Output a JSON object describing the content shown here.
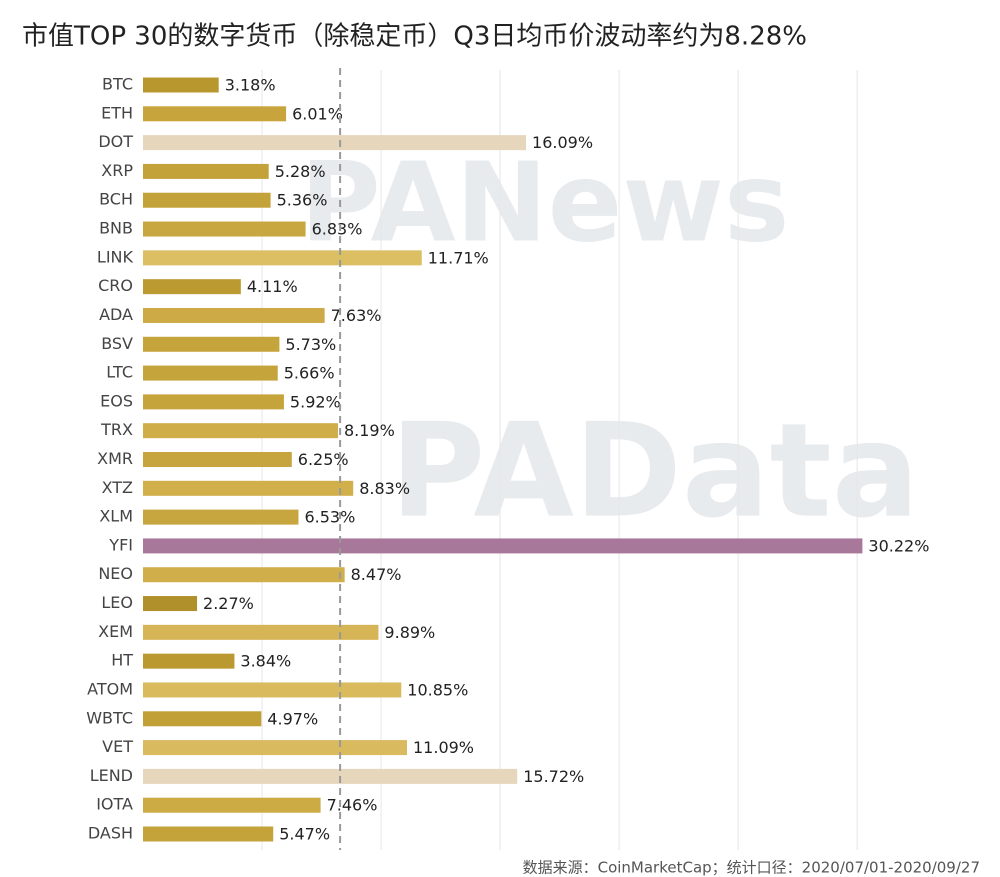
{
  "chart_data": {
    "type": "barh",
    "title": "市值TOP 30的数字货币（除稳定币）Q3日均币价波动率约为8.28%",
    "categories": [
      "BTC",
      "ETH",
      "DOT",
      "XRP",
      "BCH",
      "BNB",
      "LINK",
      "CRO",
      "ADA",
      "BSV",
      "LTC",
      "EOS",
      "TRX",
      "XMR",
      "XTZ",
      "XLM",
      "YFI",
      "NEO",
      "LEO",
      "XEM",
      "HT",
      "ATOM",
      "WBTC",
      "VET",
      "LEND",
      "IOTA",
      "DASH"
    ],
    "values": [
      3.18,
      6.01,
      16.09,
      5.28,
      5.36,
      6.83,
      11.71,
      4.11,
      7.63,
      5.73,
      5.66,
      5.92,
      8.19,
      6.25,
      8.83,
      6.53,
      30.22,
      8.47,
      2.27,
      9.89,
      3.84,
      10.85,
      4.97,
      11.09,
      15.72,
      7.46,
      5.47
    ],
    "value_labels": [
      "3.18%",
      "6.01%",
      "16.09%",
      "5.28%",
      "5.36%",
      "6.83%",
      "11.71%",
      "4.11%",
      "7.63%",
      "5.73%",
      "5.66%",
      "5.92%",
      "8.19%",
      "6.25%",
      "8.83%",
      "6.53%",
      "30.22%",
      "8.47%",
      "2.27%",
      "9.89%",
      "3.84%",
      "10.85%",
      "4.97%",
      "11.09%",
      "15.72%",
      "7.46%",
      "5.47%"
    ],
    "colors": [
      "#b8982e",
      "#c7a43c",
      "#e5d6bc",
      "#c4a23a",
      "#c4a23a",
      "#c9a740",
      "#dcbf63",
      "#bb9a32",
      "#cdaa45",
      "#c6a43c",
      "#c6a43c",
      "#c6a43c",
      "#cfad48",
      "#c7a53e",
      "#d1b04c",
      "#c8a63f",
      "#a8789b",
      "#d0ae4a",
      "#b0902a",
      "#d5b555",
      "#ba9931",
      "#d9bb5d",
      "#c2a038",
      "#daba5f",
      "#e5d6bc",
      "#ccaa44",
      "#c5a33b"
    ],
    "xlim": [
      0,
      36
    ],
    "xticks": [
      5,
      10,
      15,
      20,
      25,
      30
    ],
    "grid": true,
    "reference_line": {
      "value": 8.28
    },
    "watermarks": [
      "PANews",
      "PAData"
    ],
    "source": "数据来源：CoinMarketCap；统计口径：2020/07/01-2020/09/27"
  }
}
